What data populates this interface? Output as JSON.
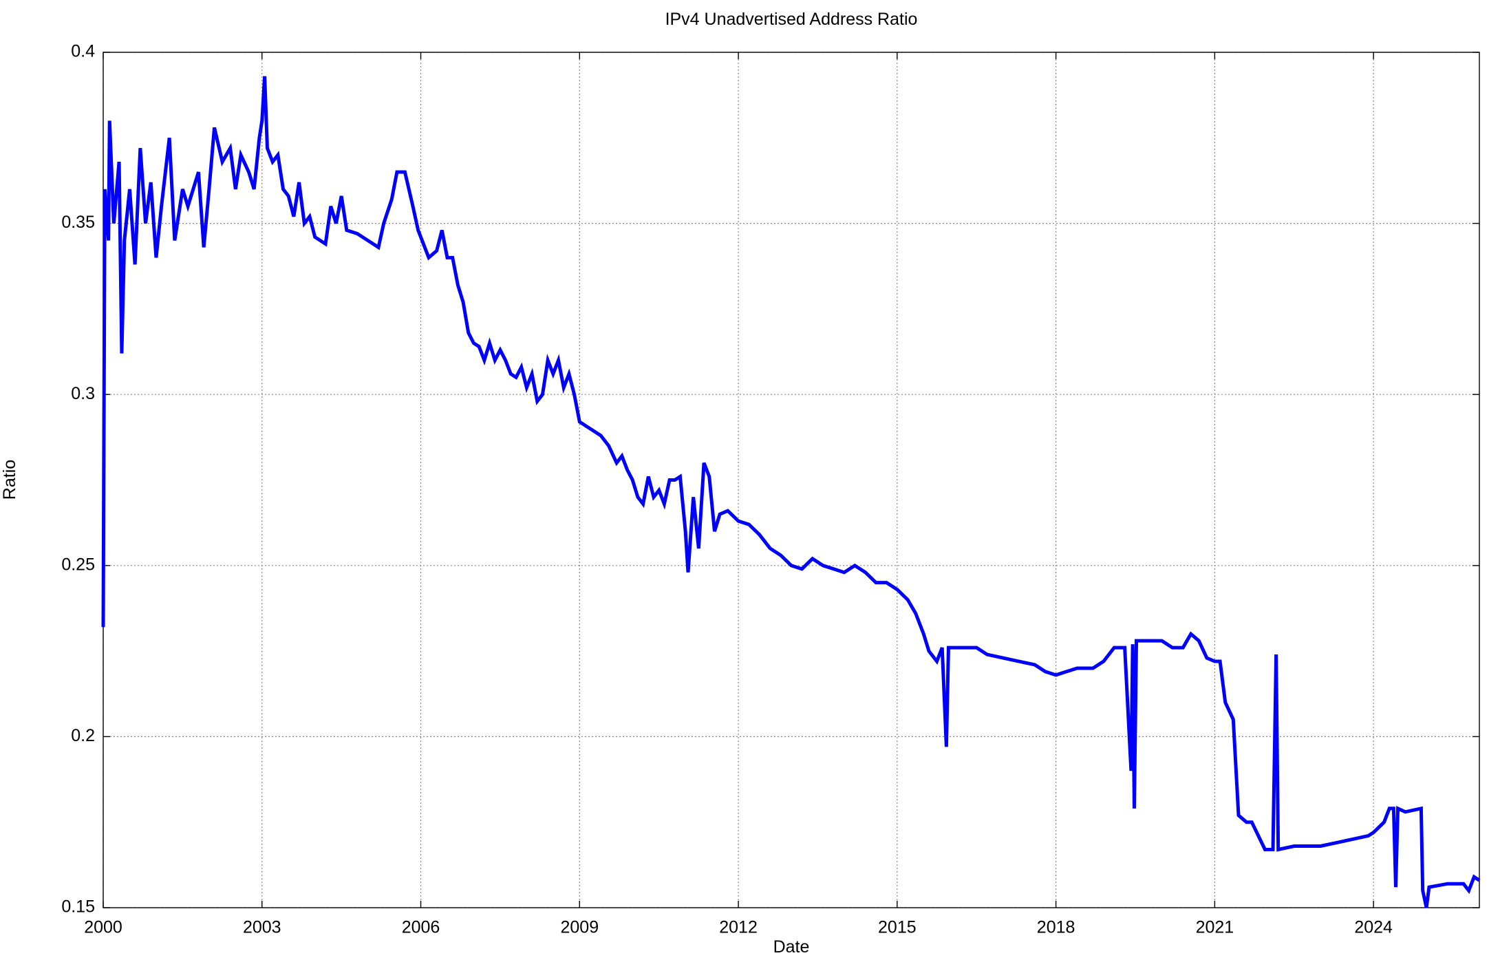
{
  "chart_data": {
    "type": "line",
    "title": "IPv4 Unadvertised Address Ratio",
    "x_label": "Date",
    "y_label": "Ratio",
    "xlim": [
      2000,
      2026
    ],
    "xticks": [
      2000,
      2003,
      2006,
      2009,
      2012,
      2015,
      2018,
      2021,
      2024
    ],
    "ylim": [
      0.15,
      0.4
    ],
    "yticks": [
      0.15,
      0.2,
      0.25,
      0.3,
      0.35,
      0.4
    ],
    "grid": true,
    "series": [
      {
        "name": "Ratio",
        "color": "#0000ff",
        "x": [
          2000.0,
          2000.03,
          2000.1,
          2000.12,
          2000.2,
          2000.3,
          2000.35,
          2000.4,
          2000.5,
          2000.6,
          2000.7,
          2000.8,
          2000.9,
          2001.0,
          2001.1,
          2001.25,
          2001.35,
          2001.5,
          2001.6,
          2001.8,
          2001.9,
          2002.0,
          2002.1,
          2002.25,
          2002.4,
          2002.5,
          2002.6,
          2002.75,
          2002.85,
          2002.95,
          2003.0,
          2003.05,
          2003.1,
          2003.2,
          2003.3,
          2003.4,
          2003.5,
          2003.6,
          2003.7,
          2003.8,
          2003.9,
          2004.0,
          2004.2,
          2004.3,
          2004.4,
          2004.5,
          2004.6,
          2004.8,
          2005.0,
          2005.2,
          2005.3,
          2005.45,
          2005.55,
          2005.7,
          2005.85,
          2005.95,
          2006.05,
          2006.15,
          2006.3,
          2006.4,
          2006.5,
          2006.6,
          2006.7,
          2006.8,
          2006.9,
          2007.0,
          2007.1,
          2007.2,
          2007.3,
          2007.4,
          2007.5,
          2007.6,
          2007.7,
          2007.8,
          2007.9,
          2008.0,
          2008.1,
          2008.2,
          2008.3,
          2008.4,
          2008.5,
          2008.6,
          2008.7,
          2008.8,
          2008.9,
          2009.0,
          2009.2,
          2009.4,
          2009.55,
          2009.7,
          2009.8,
          2009.9,
          2010.0,
          2010.1,
          2010.2,
          2010.3,
          2010.4,
          2010.5,
          2010.6,
          2010.7,
          2010.8,
          2010.9,
          2011.0,
          2011.05,
          2011.15,
          2011.25,
          2011.35,
          2011.45,
          2011.55,
          2011.65,
          2011.8,
          2012.0,
          2012.2,
          2012.4,
          2012.6,
          2012.8,
          2013.0,
          2013.2,
          2013.4,
          2013.6,
          2013.8,
          2014.0,
          2014.2,
          2014.4,
          2014.6,
          2014.8,
          2015.0,
          2015.2,
          2015.35,
          2015.5,
          2015.6,
          2015.75,
          2015.85,
          2015.93,
          2015.97,
          2016.2,
          2016.5,
          2016.7,
          2017.0,
          2017.3,
          2017.6,
          2017.8,
          2018.0,
          2018.2,
          2018.4,
          2018.7,
          2018.9,
          2019.1,
          2019.3,
          2019.42,
          2019.45,
          2019.48,
          2019.52,
          2019.8,
          2020.0,
          2020.2,
          2020.4,
          2020.55,
          2020.7,
          2020.85,
          2021.0,
          2021.1,
          2021.2,
          2021.35,
          2021.45,
          2021.6,
          2021.7,
          2021.95,
          2022.1,
          2022.16,
          2022.2,
          2022.5,
          2022.8,
          2023.0,
          2023.3,
          2023.6,
          2023.9,
          2024.0,
          2024.2,
          2024.3,
          2024.38,
          2024.42,
          2024.46,
          2024.6,
          2024.9,
          2024.93,
          2025.0,
          2025.05,
          2025.4,
          2025.7,
          2025.8,
          2025.9,
          2026.0
        ],
        "values": [
          0.232,
          0.36,
          0.345,
          0.38,
          0.35,
          0.368,
          0.312,
          0.345,
          0.36,
          0.338,
          0.372,
          0.35,
          0.362,
          0.34,
          0.355,
          0.375,
          0.345,
          0.36,
          0.355,
          0.365,
          0.343,
          0.36,
          0.378,
          0.368,
          0.372,
          0.36,
          0.37,
          0.365,
          0.36,
          0.375,
          0.38,
          0.393,
          0.372,
          0.368,
          0.37,
          0.36,
          0.358,
          0.352,
          0.362,
          0.35,
          0.352,
          0.346,
          0.344,
          0.355,
          0.35,
          0.358,
          0.348,
          0.347,
          0.345,
          0.343,
          0.35,
          0.357,
          0.365,
          0.365,
          0.355,
          0.348,
          0.344,
          0.34,
          0.342,
          0.348,
          0.34,
          0.34,
          0.332,
          0.327,
          0.318,
          0.315,
          0.314,
          0.31,
          0.315,
          0.31,
          0.313,
          0.31,
          0.306,
          0.305,
          0.308,
          0.302,
          0.306,
          0.298,
          0.3,
          0.31,
          0.306,
          0.31,
          0.302,
          0.306,
          0.3,
          0.292,
          0.29,
          0.288,
          0.285,
          0.28,
          0.282,
          0.278,
          0.275,
          0.27,
          0.268,
          0.276,
          0.27,
          0.272,
          0.268,
          0.275,
          0.275,
          0.276,
          0.26,
          0.248,
          0.27,
          0.255,
          0.28,
          0.276,
          0.26,
          0.265,
          0.266,
          0.263,
          0.262,
          0.259,
          0.255,
          0.253,
          0.25,
          0.249,
          0.252,
          0.25,
          0.249,
          0.248,
          0.25,
          0.248,
          0.245,
          0.245,
          0.243,
          0.24,
          0.236,
          0.23,
          0.225,
          0.222,
          0.226,
          0.197,
          0.226,
          0.226,
          0.226,
          0.224,
          0.223,
          0.222,
          0.221,
          0.219,
          0.218,
          0.219,
          0.22,
          0.22,
          0.222,
          0.226,
          0.226,
          0.19,
          0.227,
          0.179,
          0.228,
          0.228,
          0.228,
          0.226,
          0.226,
          0.23,
          0.228,
          0.223,
          0.222,
          0.222,
          0.21,
          0.205,
          0.177,
          0.175,
          0.175,
          0.167,
          0.167,
          0.224,
          0.167,
          0.168,
          0.168,
          0.168,
          0.169,
          0.17,
          0.171,
          0.172,
          0.175,
          0.179,
          0.179,
          0.156,
          0.179,
          0.178,
          0.179,
          0.155,
          0.15,
          0.156,
          0.157,
          0.157,
          0.155,
          0.159,
          0.158
        ]
      }
    ]
  }
}
